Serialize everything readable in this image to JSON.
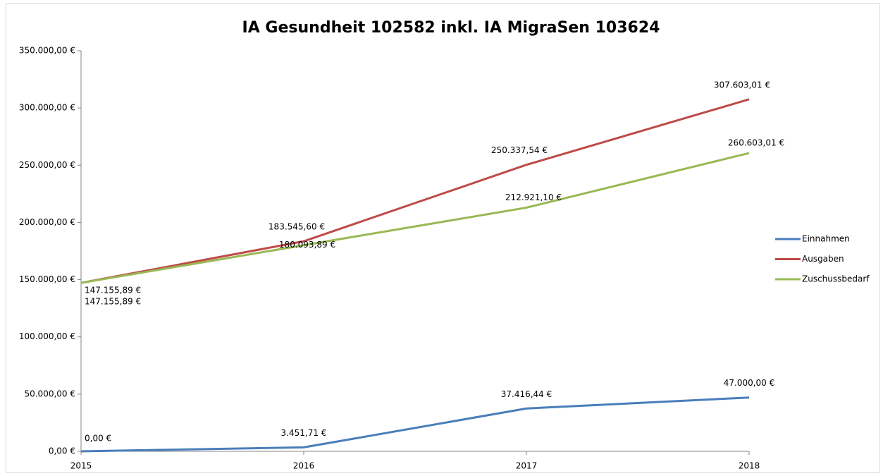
{
  "chart_data": {
    "type": "line",
    "title": "IA Gesundheit 102582 inkl. IA MigraSen 103624",
    "categories": [
      "2015",
      "2016",
      "2017",
      "2018"
    ],
    "series": [
      {
        "name": "Einnahmen",
        "color": "#4a7ebb",
        "values": [
          0,
          3451.71,
          37416.44,
          47000
        ],
        "value_labels": [
          "0,00 €",
          "3.451,71 €",
          "37.416,44 €",
          "47.000,00 €"
        ]
      },
      {
        "name": "Ausgaben",
        "color": "#be4b48",
        "values": [
          147155.89,
          183545.6,
          250337.54,
          307603.01
        ],
        "value_labels": [
          "147.155,89 €",
          "183.545,60 €",
          "250.337,54 €",
          "307.603,01 €"
        ]
      },
      {
        "name": "Zuschussbedarf",
        "color": "#98b954",
        "values": [
          147155.89,
          180093.89,
          212921.1,
          260603.01
        ],
        "value_labels": [
          "147.155,89 €",
          "180.093,89 €",
          "212.921,10 €",
          "260.603,01 €"
        ]
      }
    ],
    "ylim": [
      0,
      350000
    ],
    "yticks": [
      {
        "value": 0,
        "label": "0,00 €"
      },
      {
        "value": 50000,
        "label": "50.000,00 €"
      },
      {
        "value": 100000,
        "label": "100.000,00 €"
      },
      {
        "value": 150000,
        "label": "150.000,00 €"
      },
      {
        "value": 200000,
        "label": "200.000,00 €"
      },
      {
        "value": 250000,
        "label": "250.000,00 €"
      },
      {
        "value": 300000,
        "label": "300.000,00 €"
      },
      {
        "value": 350000,
        "label": "350.000,00 €"
      }
    ],
    "grid": false,
    "legend": "right"
  }
}
